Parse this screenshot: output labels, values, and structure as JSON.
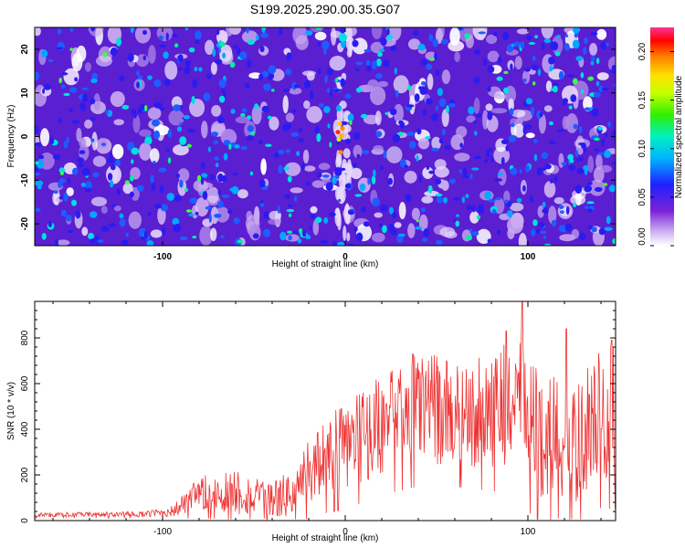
{
  "chart_data": [
    {
      "type": "heatmap",
      "title": "S199.2025.290.00.35.G07",
      "xlabel": "Height of straight line (km)",
      "ylabel": "Frequency (Hz)",
      "xlim": [
        -170,
        148
      ],
      "ylim": [
        -25,
        25
      ],
      "xticks": [
        "-100",
        "0",
        "100"
      ],
      "yticks": [
        "20",
        "10",
        "0",
        "-10",
        "-20"
      ],
      "colorbar": {
        "label": "Normalized spectral amplitude",
        "range": [
          0,
          0.225
        ],
        "ticks": [
          "0.00",
          "0.05",
          "0.10",
          "0.15",
          "0.20"
        ]
      },
      "peak": {
        "x": -3,
        "y": 1,
        "amplitude": 0.2
      }
    },
    {
      "type": "line",
      "xlabel": "Height of straight line (km)",
      "ylabel": "SNR (10 * v/v)",
      "xlim": [
        -170,
        148
      ],
      "ylim": [
        0,
        960
      ],
      "xticks": [
        "-100",
        "0",
        "100"
      ],
      "yticks": [
        "0",
        "200",
        "400",
        "600",
        "800"
      ],
      "color": "#ee3333",
      "envelope": [
        {
          "x": -170,
          "mean": 25,
          "spread": 10
        },
        {
          "x": -110,
          "mean": 28,
          "spread": 12
        },
        {
          "x": -95,
          "mean": 40,
          "spread": 25
        },
        {
          "x": -80,
          "mean": 110,
          "spread": 80
        },
        {
          "x": -60,
          "mean": 130,
          "spread": 110
        },
        {
          "x": -45,
          "mean": 90,
          "spread": 80
        },
        {
          "x": -30,
          "mean": 110,
          "spread": 100
        },
        {
          "x": -18,
          "mean": 230,
          "spread": 150
        },
        {
          "x": 0,
          "mean": 330,
          "spread": 200
        },
        {
          "x": 20,
          "mean": 420,
          "spread": 220
        },
        {
          "x": 40,
          "mean": 500,
          "spread": 250
        },
        {
          "x": 60,
          "mean": 470,
          "spread": 230
        },
        {
          "x": 80,
          "mean": 480,
          "spread": 250
        },
        {
          "x": 95,
          "mean": 520,
          "spread": 300
        },
        {
          "x": 105,
          "mean": 380,
          "spread": 280
        },
        {
          "x": 115,
          "mean": 380,
          "spread": 300
        },
        {
          "x": 125,
          "mean": 300,
          "spread": 260
        },
        {
          "x": 135,
          "mean": 450,
          "spread": 280
        },
        {
          "x": 148,
          "mean": 470,
          "spread": 300
        }
      ],
      "peaks": [
        {
          "x": 97,
          "y": 960
        },
        {
          "x": 121,
          "y": 840
        },
        {
          "x": 88,
          "y": 830
        },
        {
          "x": 146,
          "y": 790
        },
        {
          "x": 37,
          "y": 730
        }
      ]
    }
  ]
}
